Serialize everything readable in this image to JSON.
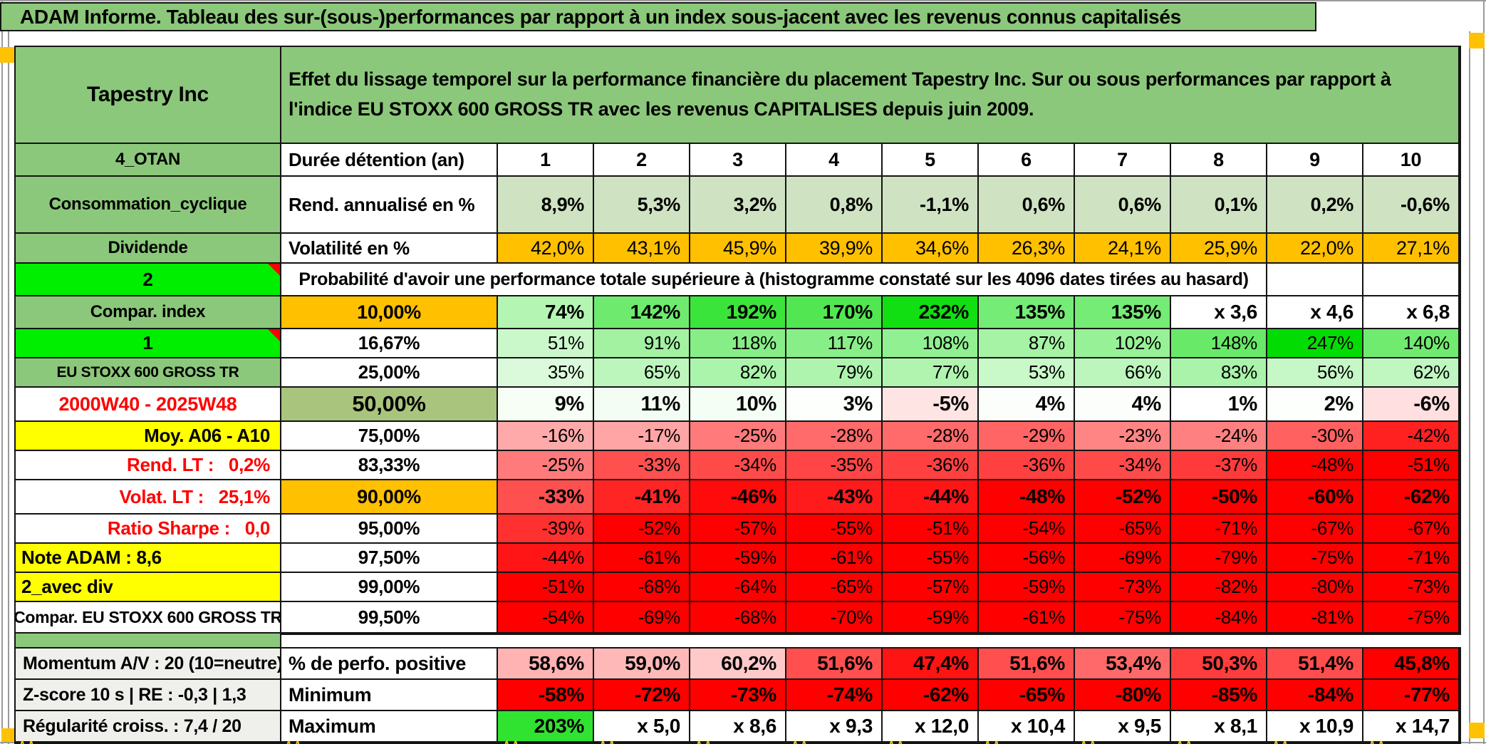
{
  "title_bar": {
    "text": "ADAM Informe. Tableau des sur-(sous-)performances par rapport à un index sous-jacent avec les revenus connus capitalisés"
  },
  "header": {
    "company": "Tapestry Inc",
    "description": "Effet du lissage temporel sur la performance financière du placement Tapestry Inc. Sur ou sous performances par rapport à l'indice EU STOXX 600 GROSS TR avec les revenus CAPITALISES depuis juin 2009."
  },
  "colors": {
    "green_header": "#8cc87b",
    "bright_green": "#00ee00",
    "orange": "#ffc000",
    "yellow": "#ffff00",
    "olive": "#a9c57d",
    "sage": "#cfe3c2",
    "label_gray": "#efefec",
    "red_text": "#fe0000",
    "heat_green_max": "#00dc00",
    "heat_red_max": "#ff0000",
    "corner_marker": "#ffc103"
  },
  "columns": [
    "1",
    "2",
    "3",
    "4",
    "5",
    "6",
    "7",
    "8",
    "9",
    "10"
  ],
  "rows": [
    {
      "id": "duree",
      "a": "4_OTAN",
      "b": "Durée détention (an)",
      "values": [
        "1",
        "2",
        "3",
        "4",
        "5",
        "6",
        "7",
        "8",
        "9",
        "10"
      ]
    },
    {
      "id": "rend",
      "a": "Consommation_cyclique",
      "b": "Rend. annualisé en %",
      "values": [
        "8,9%",
        "5,3%",
        "3,2%",
        "0,8%",
        "-1,1%",
        "0,6%",
        "0,6%",
        "0,1%",
        "0,2%",
        "-0,6%"
      ]
    },
    {
      "id": "volat",
      "a": "Dividende",
      "b": "Volatilité en %",
      "values": [
        "42,0%",
        "43,1%",
        "45,9%",
        "39,9%",
        "34,6%",
        "26,3%",
        "24,1%",
        "25,9%",
        "22,0%",
        "27,1%"
      ]
    },
    {
      "id": "proba",
      "a": "2",
      "b": "Probabilité d'avoir une performance totale supérieure à (histogramme constaté sur les 4096 dates tirées au hasard)",
      "values": [
        "",
        ""
      ]
    },
    {
      "id": "p10",
      "a": "Compar. index",
      "b": "10,00%",
      "values": [
        "74%",
        "142%",
        "192%",
        "170%",
        "232%",
        "135%",
        "135%",
        "x 3,6",
        "x 4,6",
        "x 6,8"
      ]
    },
    {
      "id": "p16",
      "a": "1",
      "b": "16,67%",
      "values": [
        "51%",
        "91%",
        "118%",
        "117%",
        "108%",
        "87%",
        "102%",
        "148%",
        "247%",
        "140%"
      ]
    },
    {
      "id": "p25",
      "a": "EU STOXX 600 GROSS TR",
      "b": "25,00%",
      "values": [
        "35%",
        "65%",
        "82%",
        "79%",
        "77%",
        "53%",
        "66%",
        "83%",
        "56%",
        "62%"
      ]
    },
    {
      "id": "p50",
      "a": "2000W40 - 2025W48",
      "b": "50,00%",
      "values": [
        "9%",
        "11%",
        "10%",
        "3%",
        "-5%",
        "4%",
        "4%",
        "1%",
        "2%",
        "-6%"
      ]
    },
    {
      "id": "p75",
      "a": "Moy. A06 - A10",
      "b": "75,00%",
      "values": [
        "-16%",
        "-17%",
        "-25%",
        "-28%",
        "-28%",
        "-29%",
        "-23%",
        "-24%",
        "-30%",
        "-42%"
      ]
    },
    {
      "id": "p83",
      "a": "Rend. LT :   0,2%",
      "b": "83,33%",
      "values": [
        "-25%",
        "-33%",
        "-34%",
        "-35%",
        "-36%",
        "-36%",
        "-34%",
        "-37%",
        "-48%",
        "-51%"
      ]
    },
    {
      "id": "p90",
      "a": "Volat. LT :   25,1%",
      "b": "90,00%",
      "values": [
        "-33%",
        "-41%",
        "-46%",
        "-43%",
        "-44%",
        "-48%",
        "-52%",
        "-50%",
        "-60%",
        "-62%"
      ]
    },
    {
      "id": "p95",
      "a": "Ratio Sharpe :   0,0",
      "b": "95,00%",
      "values": [
        "-39%",
        "-52%",
        "-57%",
        "-55%",
        "-51%",
        "-54%",
        "-65%",
        "-71%",
        "-67%",
        "-67%"
      ]
    },
    {
      "id": "p975",
      "a": "Note ADAM : 8,6",
      "b": "97,50%",
      "values": [
        "-44%",
        "-61%",
        "-59%",
        "-61%",
        "-55%",
        "-56%",
        "-69%",
        "-79%",
        "-75%",
        "-71%"
      ]
    },
    {
      "id": "p99",
      "a": "2_avec div",
      "b": "99,00%",
      "values": [
        "-51%",
        "-68%",
        "-64%",
        "-65%",
        "-57%",
        "-59%",
        "-73%",
        "-82%",
        "-80%",
        "-73%"
      ]
    },
    {
      "id": "p995",
      "a": "Compar. EU STOXX 600 GROSS TR",
      "b": "99,50%",
      "values": [
        "-54%",
        "-69%",
        "-68%",
        "-70%",
        "-59%",
        "-61%",
        "-75%",
        "-84%",
        "-81%",
        "-75%"
      ]
    }
  ],
  "bottom_rows": [
    {
      "id": "perfo",
      "a": "Momentum A/V : 20 (10=neutre)",
      "b": "% de perfo. positive",
      "values": [
        "58,6%",
        "59,0%",
        "60,2%",
        "51,6%",
        "47,4%",
        "51,6%",
        "53,4%",
        "50,3%",
        "51,4%",
        "45,8%"
      ]
    },
    {
      "id": "min",
      "a": "Z-score 10 s | RE : -0,3 | 1,3",
      "b": "Minimum",
      "values": [
        "-58%",
        "-72%",
        "-73%",
        "-74%",
        "-62%",
        "-65%",
        "-80%",
        "-85%",
        "-84%",
        "-77%"
      ]
    },
    {
      "id": "max",
      "a": "Régularité croiss. : 7,4 / 20",
      "b": "Maximum",
      "values": [
        "203%",
        "x 5,0",
        "x 8,6",
        "x 9,3",
        "x 12,0",
        "x 10,4",
        "x 9,5",
        "x 8,1",
        "x 10,9",
        "x 14,7"
      ]
    }
  ]
}
